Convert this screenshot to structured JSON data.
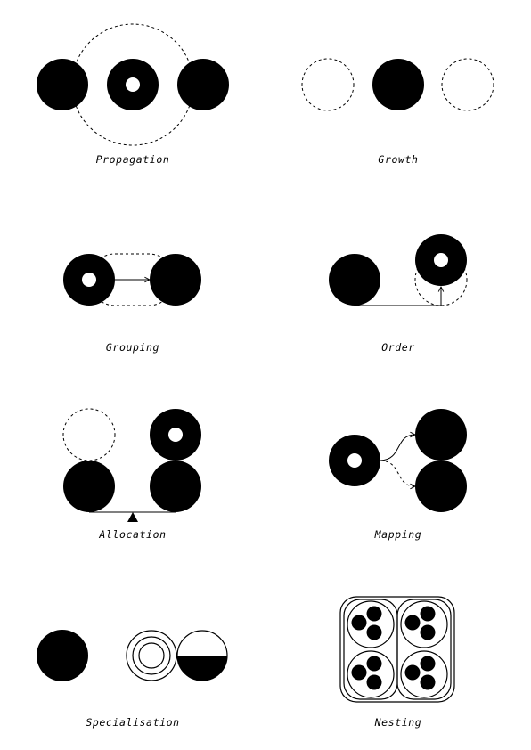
{
  "colors": {
    "ink": "#000000",
    "paper": "#ffffff"
  },
  "panels": [
    {
      "id": "propagation",
      "label": "Propagation"
    },
    {
      "id": "growth",
      "label": "Growth"
    },
    {
      "id": "grouping",
      "label": "Grouping"
    },
    {
      "id": "order",
      "label": "Order"
    },
    {
      "id": "allocation",
      "label": "Allocation"
    },
    {
      "id": "mapping",
      "label": "Mapping"
    },
    {
      "id": "specialisation",
      "label": "Specialisation"
    },
    {
      "id": "nesting",
      "label": "Nesting"
    }
  ]
}
